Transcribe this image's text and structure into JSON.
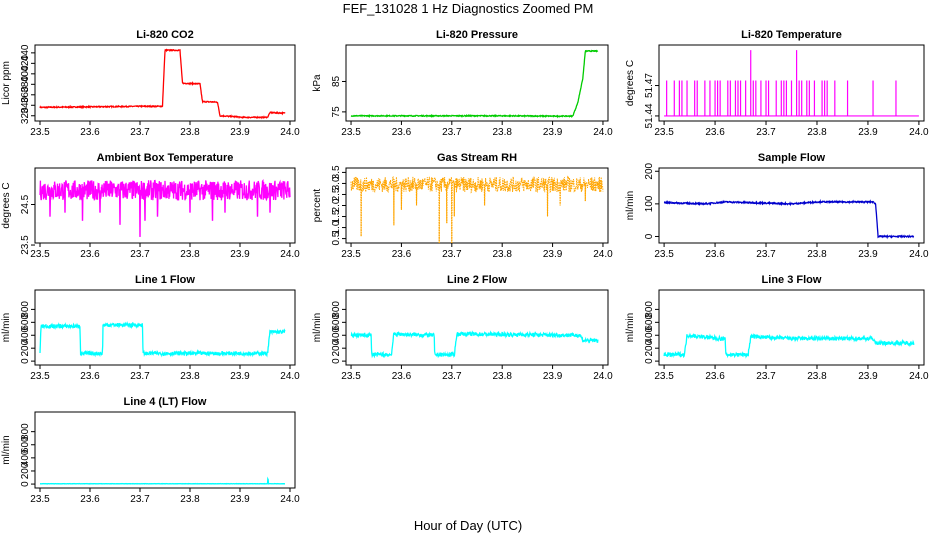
{
  "figure": {
    "title": "FEF_131028  1 Hz Diagnostics Zoomed PM",
    "xlabel": "Hour of Day (UTC)"
  },
  "chart_data": [
    {
      "id": "co2",
      "type": "line",
      "title": "Li-820 CO2",
      "ylabel": "Licor ppm",
      "color": "#ff0000",
      "xlim": [
        23.5,
        24.0
      ],
      "ylim": [
        310,
        455
      ],
      "xticks": [
        "23.5",
        "23.6",
        "23.7",
        "23.8",
        "23.9",
        "24.0"
      ],
      "yticks": [
        "320",
        "340",
        "360",
        "380",
        "400",
        "420",
        "440"
      ],
      "x": [
        23.5,
        23.6,
        23.7,
        23.745,
        23.75,
        23.76,
        23.78,
        23.785,
        23.82,
        23.825,
        23.855,
        23.86,
        23.895,
        23.9,
        23.955,
        23.96,
        23.99
      ],
      "y": [
        336,
        337,
        338,
        338,
        445,
        445,
        445,
        382,
        381,
        347,
        346,
        320,
        318,
        317,
        317,
        326,
        325
      ],
      "noise": 1
    },
    {
      "id": "pressure",
      "type": "line",
      "title": "Li-820 Pressure",
      "ylabel": "kPa",
      "color": "#00cc00",
      "xlim": [
        23.5,
        24.0
      ],
      "ylim": [
        72,
        97
      ],
      "xticks": [
        "23.5",
        "23.6",
        "23.7",
        "23.8",
        "23.9",
        "24.0"
      ],
      "yticks": [
        "75",
        "85"
      ],
      "x": [
        23.5,
        23.6,
        23.7,
        23.8,
        23.9,
        23.94,
        23.95,
        23.96,
        23.965,
        23.99
      ],
      "y": [
        73.7,
        73.7,
        73.7,
        73.7,
        73.6,
        73.6,
        78,
        86,
        95,
        95
      ],
      "noise": 0.15
    },
    {
      "id": "licor_temp",
      "type": "spikes",
      "title": "Li-820 Temperature",
      "ylabel": "degrees C",
      "color": "#ff00ff",
      "xlim": [
        23.5,
        24.0
      ],
      "ylim": [
        51.435,
        51.51
      ],
      "xticks": [
        "23.5",
        "23.6",
        "23.7",
        "23.8",
        "23.9",
        "24.0"
      ],
      "yticks": [
        "51.44",
        "51.47"
      ],
      "baseline": 51.44,
      "spike_x": [
        23.505,
        23.52,
        23.53,
        23.535,
        23.545,
        23.56,
        23.565,
        23.58,
        23.59,
        23.6,
        23.605,
        23.61,
        23.625,
        23.63,
        23.64,
        23.645,
        23.65,
        23.66,
        23.67,
        23.675,
        23.68,
        23.69,
        23.7,
        23.705,
        23.72,
        23.73,
        23.735,
        23.74,
        23.75,
        23.76,
        23.765,
        23.77,
        23.78,
        23.785,
        23.795,
        23.81,
        23.815,
        23.82,
        23.835,
        23.86,
        23.91,
        23.955
      ],
      "spike_y": [
        51.475,
        51.475,
        51.475,
        51.475,
        51.475,
        51.475,
        51.475,
        51.475,
        51.475,
        51.475,
        51.475,
        51.475,
        51.475,
        51.475,
        51.475,
        51.475,
        51.475,
        51.475,
        51.505,
        51.475,
        51.475,
        51.475,
        51.475,
        51.475,
        51.475,
        51.475,
        51.475,
        51.475,
        51.475,
        51.505,
        51.475,
        51.475,
        51.475,
        51.475,
        51.475,
        51.475,
        51.475,
        51.475,
        51.475,
        51.475,
        51.475,
        51.475
      ]
    },
    {
      "id": "box_temp",
      "type": "line",
      "title": "Ambient Box Temperature",
      "ylabel": "degrees C",
      "color": "#ff00ff",
      "xlim": [
        23.5,
        24.0
      ],
      "ylim": [
        23.55,
        25.4
      ],
      "xticks": [
        "23.5",
        "23.6",
        "23.7",
        "23.8",
        "23.9",
        "24.0"
      ],
      "yticks": [
        "23.5",
        "24.5"
      ],
      "x": [
        23.5,
        24.0
      ],
      "y": [
        24.85,
        24.85
      ],
      "noise": 0.25,
      "dips": [
        [
          23.52,
          24.2
        ],
        [
          23.55,
          24.3
        ],
        [
          23.585,
          24.1
        ],
        [
          23.62,
          24.3
        ],
        [
          23.66,
          24.0
        ],
        [
          23.7,
          23.7
        ],
        [
          23.71,
          24.1
        ],
        [
          23.735,
          24.2
        ],
        [
          23.8,
          24.3
        ],
        [
          23.845,
          24.1
        ],
        [
          23.87,
          24.3
        ],
        [
          23.935,
          24.2
        ],
        [
          23.96,
          24.3
        ]
      ]
    },
    {
      "id": "rh",
      "type": "dots",
      "title": "Gas Stream RH",
      "ylabel": "percent",
      "color": "#ffa500",
      "xlim": [
        23.5,
        24.0
      ],
      "ylim": [
        0.3,
        3.7
      ],
      "xticks": [
        "23.5",
        "23.6",
        "23.7",
        "23.8",
        "23.9",
        "24.0"
      ],
      "yticks": [
        "0.5",
        "1.0",
        "1.5",
        "2.0",
        "2.5",
        "3.0",
        "3.5"
      ],
      "x": [
        23.5,
        24.0
      ],
      "y": [
        2.95,
        2.95
      ],
      "noise": 0.35,
      "dips": [
        [
          23.52,
          0.6
        ],
        [
          23.585,
          1.1
        ],
        [
          23.6,
          1.8
        ],
        [
          23.63,
          2.0
        ],
        [
          23.675,
          0.3
        ],
        [
          23.69,
          1.2
        ],
        [
          23.7,
          0.3
        ],
        [
          23.705,
          1.5
        ],
        [
          23.765,
          2.0
        ],
        [
          23.89,
          1.5
        ],
        [
          23.915,
          2.0
        ],
        [
          23.965,
          2.2
        ]
      ]
    },
    {
      "id": "sample_flow",
      "type": "line",
      "title": "Sample Flow",
      "ylabel": "ml/min",
      "color": "#0000cc",
      "xlim": [
        23.5,
        24.0
      ],
      "ylim": [
        -20,
        210
      ],
      "xticks": [
        "23.5",
        "23.6",
        "23.7",
        "23.8",
        "23.9",
        "24.0"
      ],
      "yticks": [
        "0",
        "100",
        "200"
      ],
      "x": [
        23.5,
        23.58,
        23.62,
        23.75,
        23.8,
        23.91,
        23.915,
        23.92,
        23.99
      ],
      "y": [
        104,
        100,
        106,
        100,
        106,
        106,
        100,
        0,
        0
      ],
      "noise": 2
    },
    {
      "id": "line1",
      "type": "line",
      "title": "Line 1 Flow",
      "ylabel": "ml/min",
      "color": "#00ffff",
      "xlim": [
        23.5,
        24.0
      ],
      "ylim": [
        -60,
        1100
      ],
      "xticks": [
        "23.5",
        "23.6",
        "23.7",
        "23.8",
        "23.9",
        "24.0"
      ],
      "yticks": [
        "0",
        "200",
        "400",
        "600",
        "800"
      ],
      "x": [
        23.5,
        23.502,
        23.58,
        23.581,
        23.625,
        23.626,
        23.705,
        23.706,
        23.955,
        23.96,
        23.99
      ],
      "y": [
        120,
        540,
        540,
        120,
        120,
        560,
        560,
        120,
        120,
        450,
        450
      ],
      "noise": 30
    },
    {
      "id": "line2",
      "type": "line",
      "title": "Line 2 Flow",
      "ylabel": "ml/min",
      "color": "#00ffff",
      "xlim": [
        23.5,
        24.0
      ],
      "ylim": [
        -60,
        1100
      ],
      "xticks": [
        "23.5",
        "23.6",
        "23.7",
        "23.8",
        "23.9",
        "24.0"
      ],
      "yticks": [
        "0",
        "200",
        "400",
        "600",
        "800"
      ],
      "x": [
        23.5,
        23.54,
        23.541,
        23.58,
        23.585,
        23.665,
        23.666,
        23.705,
        23.71,
        23.955,
        23.96,
        23.99
      ],
      "y": [
        400,
        400,
        100,
        100,
        420,
        400,
        100,
        100,
        420,
        400,
        320,
        320
      ],
      "noise": 30
    },
    {
      "id": "line3",
      "type": "line",
      "title": "Line 3 Flow",
      "ylabel": "ml/min",
      "color": "#00ffff",
      "xlim": [
        23.5,
        24.0
      ],
      "ylim": [
        -60,
        1100
      ],
      "xticks": [
        "23.5",
        "23.6",
        "23.7",
        "23.8",
        "23.9",
        "24.0"
      ],
      "yticks": [
        "0",
        "200",
        "400",
        "600",
        "800"
      ],
      "x": [
        23.5,
        23.54,
        23.545,
        23.62,
        23.621,
        23.665,
        23.67,
        23.75,
        23.91,
        23.915,
        23.99
      ],
      "y": [
        100,
        100,
        400,
        340,
        100,
        100,
        380,
        350,
        350,
        280,
        280
      ],
      "noise": 30
    },
    {
      "id": "line4",
      "type": "line",
      "title": "Line 4 (LT) Flow",
      "ylabel": "ml/min",
      "color": "#00ffff",
      "xlim": [
        23.5,
        24.0
      ],
      "ylim": [
        -60,
        1100
      ],
      "xticks": [
        "23.5",
        "23.6",
        "23.7",
        "23.8",
        "23.9",
        "24.0"
      ],
      "yticks": [
        "0",
        "200",
        "400",
        "600",
        "800"
      ],
      "x": [
        23.5,
        23.955,
        23.956,
        23.957,
        23.99
      ],
      "y": [
        5,
        5,
        110,
        5,
        5
      ],
      "noise": 2
    }
  ]
}
